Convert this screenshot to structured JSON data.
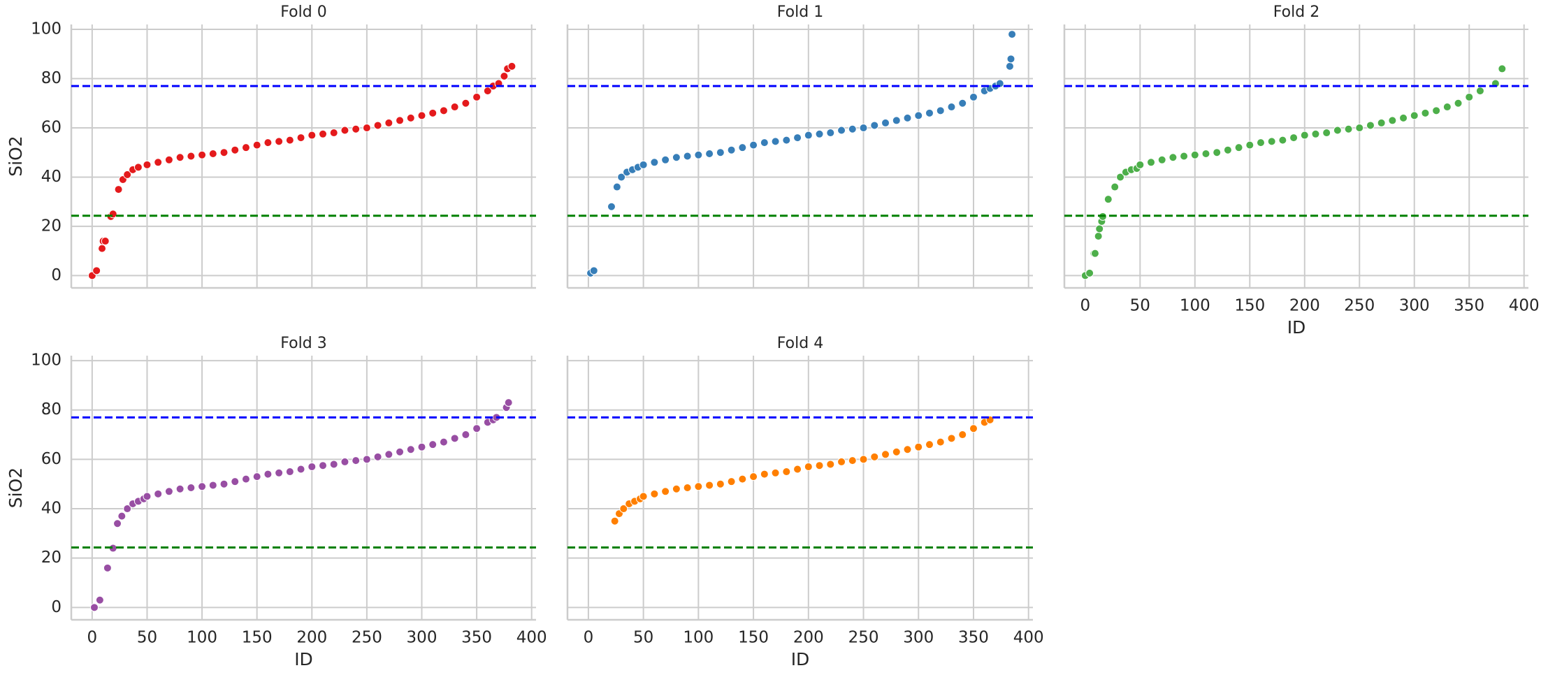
{
  "chart_data": [
    {
      "type": "scatter",
      "title": "Fold 0",
      "ylabel": "SiO2",
      "color": "#e41a1c",
      "grid": true,
      "show_xticklabels": false,
      "show_yticklabels": true,
      "xlim": [
        -19,
        404
      ],
      "ylim": [
        -5,
        102
      ],
      "xticks": [
        0,
        50,
        100,
        150,
        200,
        250,
        300,
        350,
        400
      ],
      "yticks": [
        0,
        20,
        40,
        60,
        80,
        100
      ],
      "hlines": [
        {
          "value": 77,
          "color": "#0000ff"
        },
        {
          "value": 24.3,
          "color": "#008000"
        }
      ],
      "x": [
        0,
        4,
        9,
        10,
        12,
        17,
        19,
        24,
        28,
        32,
        37,
        42,
        50,
        60,
        70,
        80,
        90,
        100,
        110,
        120,
        130,
        140,
        150,
        160,
        170,
        180,
        190,
        200,
        210,
        220,
        230,
        240,
        250,
        260,
        270,
        280,
        290,
        300,
        310,
        320,
        330,
        340,
        350,
        360,
        365,
        370,
        375,
        378,
        382
      ],
      "values": [
        0,
        2,
        11,
        14,
        14,
        24,
        25,
        35,
        39,
        41,
        43,
        44,
        45,
        46,
        47,
        48,
        48.5,
        49,
        49.5,
        50,
        51,
        52,
        53,
        54,
        54.5,
        55,
        56,
        57,
        57.5,
        58,
        59,
        59.5,
        60,
        61,
        62,
        63,
        64,
        65,
        66,
        67,
        68.5,
        70,
        72.5,
        75,
        77,
        78,
        81,
        84,
        85
      ]
    },
    {
      "type": "scatter",
      "title": "Fold 1",
      "color": "#377eb8",
      "grid": true,
      "show_xticklabels": false,
      "show_yticklabels": false,
      "xlim": [
        -19,
        404
      ],
      "ylim": [
        -5,
        102
      ],
      "xticks": [
        0,
        50,
        100,
        150,
        200,
        250,
        300,
        350,
        400
      ],
      "yticks": [
        0,
        20,
        40,
        60,
        80,
        100
      ],
      "hlines": [
        {
          "value": 77,
          "color": "#0000ff"
        },
        {
          "value": 24.3,
          "color": "#008000"
        }
      ],
      "x": [
        2,
        5,
        21,
        26,
        30,
        35,
        40,
        45,
        50,
        60,
        70,
        80,
        90,
        100,
        110,
        120,
        130,
        140,
        150,
        160,
        170,
        180,
        190,
        200,
        210,
        220,
        230,
        240,
        250,
        260,
        270,
        280,
        290,
        300,
        310,
        320,
        330,
        340,
        350,
        360,
        365,
        370,
        374,
        383,
        384,
        385
      ],
      "values": [
        1,
        2,
        28,
        36,
        40,
        42,
        43,
        44,
        45,
        46,
        47,
        48,
        48.5,
        49,
        49.5,
        50,
        51,
        52,
        53,
        54,
        54.5,
        55,
        56,
        57,
        57.5,
        58,
        59,
        59.5,
        60,
        61,
        62,
        63,
        64,
        65,
        66,
        67,
        68.5,
        70,
        72.5,
        75,
        76,
        77,
        78,
        85,
        88,
        98
      ]
    },
    {
      "type": "scatter",
      "title": "Fold 2",
      "xlabel": "ID",
      "color": "#4daf4a",
      "grid": true,
      "show_xticklabels": true,
      "show_yticklabels": false,
      "xlim": [
        -19,
        404
      ],
      "ylim": [
        -5,
        102
      ],
      "xticks": [
        0,
        50,
        100,
        150,
        200,
        250,
        300,
        350,
        400
      ],
      "yticks": [
        0,
        20,
        40,
        60,
        80,
        100
      ],
      "hlines": [
        {
          "value": 77,
          "color": "#0000ff"
        },
        {
          "value": 24.3,
          "color": "#008000"
        }
      ],
      "x": [
        0,
        4,
        8,
        9,
        12,
        13,
        15,
        16,
        21,
        27,
        32,
        37,
        42,
        47,
        50,
        60,
        70,
        80,
        90,
        100,
        110,
        120,
        130,
        140,
        150,
        160,
        170,
        180,
        190,
        200,
        210,
        220,
        230,
        240,
        250,
        260,
        270,
        280,
        290,
        300,
        310,
        320,
        330,
        340,
        350,
        360,
        374,
        380
      ],
      "values": [
        0,
        1,
        9,
        9,
        16,
        19,
        22,
        24,
        31,
        36,
        40,
        42,
        43,
        43.5,
        45,
        46,
        47,
        48,
        48.5,
        49,
        49.5,
        50,
        51,
        52,
        53,
        54,
        54.5,
        55,
        56,
        57,
        57.5,
        58,
        59,
        59.5,
        60,
        61,
        62,
        63,
        64,
        65,
        66,
        67,
        68.5,
        70,
        72.5,
        75,
        78,
        84
      ]
    },
    {
      "type": "scatter",
      "title": "Fold 3",
      "xlabel": "ID",
      "ylabel": "SiO2",
      "color": "#984ea3",
      "grid": true,
      "show_xticklabels": true,
      "show_yticklabels": true,
      "xlim": [
        -19,
        404
      ],
      "ylim": [
        -5,
        102
      ],
      "xticks": [
        0,
        50,
        100,
        150,
        200,
        250,
        300,
        350,
        400
      ],
      "yticks": [
        0,
        20,
        40,
        60,
        80,
        100
      ],
      "hlines": [
        {
          "value": 77,
          "color": "#0000ff"
        },
        {
          "value": 24.3,
          "color": "#008000"
        }
      ],
      "x": [
        2,
        7,
        14,
        19,
        23,
        27,
        32,
        37,
        42,
        47,
        50,
        60,
        70,
        80,
        90,
        100,
        110,
        120,
        130,
        140,
        150,
        160,
        170,
        180,
        190,
        200,
        210,
        220,
        230,
        240,
        250,
        260,
        270,
        280,
        290,
        300,
        310,
        320,
        330,
        340,
        350,
        360,
        365,
        368,
        377,
        379
      ],
      "values": [
        0,
        3,
        16,
        24,
        34,
        37,
        40,
        42,
        43,
        44,
        45,
        46,
        47,
        48,
        48.5,
        49,
        49.5,
        50,
        51,
        52,
        53,
        54,
        54.5,
        55,
        56,
        57,
        57.5,
        58,
        59,
        59.5,
        60,
        61,
        62,
        63,
        64,
        65,
        66,
        67,
        68.5,
        70,
        72.5,
        75,
        76,
        77,
        81,
        83
      ]
    },
    {
      "type": "scatter",
      "title": "Fold 4",
      "xlabel": "ID",
      "color": "#ff7f00",
      "grid": true,
      "show_xticklabels": true,
      "show_yticklabels": false,
      "xlim": [
        -19,
        404
      ],
      "ylim": [
        -5,
        102
      ],
      "xticks": [
        0,
        50,
        100,
        150,
        200,
        250,
        300,
        350,
        400
      ],
      "yticks": [
        0,
        20,
        40,
        60,
        80,
        100
      ],
      "hlines": [
        {
          "value": 77,
          "color": "#0000ff"
        },
        {
          "value": 24.3,
          "color": "#008000"
        }
      ],
      "x": [
        24,
        28,
        32,
        37,
        42,
        47,
        50,
        60,
        70,
        80,
        90,
        100,
        110,
        120,
        130,
        140,
        150,
        160,
        170,
        180,
        190,
        200,
        210,
        220,
        230,
        240,
        250,
        260,
        270,
        280,
        290,
        300,
        310,
        320,
        330,
        340,
        350,
        360,
        365
      ],
      "values": [
        35,
        38,
        40,
        42,
        43,
        44,
        45,
        46,
        47,
        48,
        48.5,
        49,
        49.5,
        50,
        51,
        52,
        53,
        54,
        54.5,
        55,
        56,
        57,
        57.5,
        58,
        59,
        59.5,
        60,
        61,
        62,
        63,
        64,
        65,
        66,
        67,
        68.5,
        70,
        72.5,
        75,
        76
      ]
    }
  ]
}
